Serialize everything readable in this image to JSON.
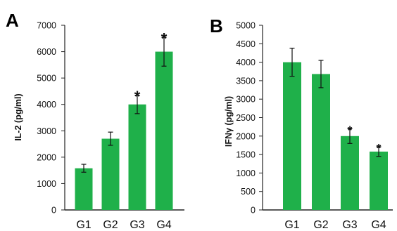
{
  "chart_data": [
    {
      "type": "bar",
      "panel": "A",
      "categories": [
        "G1",
        "G2",
        "G3",
        "G4"
      ],
      "values": [
        1580,
        2700,
        4000,
        6000
      ],
      "errors": [
        150,
        250,
        350,
        550
      ],
      "significant": [
        false,
        false,
        true,
        true
      ],
      "marker": "*",
      "ylabel": "IL-2 (pg/ml)",
      "ylim": [
        0,
        7000
      ],
      "yticks": [
        "0",
        "1000",
        "2000",
        "3000",
        "4000",
        "5000",
        "6000",
        "7000"
      ],
      "bar_color": "#1fb04a"
    },
    {
      "type": "bar",
      "panel": "B",
      "categories": [
        "G1",
        "G2",
        "G3",
        "G4"
      ],
      "values": [
        4000,
        3680,
        2000,
        1580
      ],
      "errors": [
        380,
        370,
        200,
        130
      ],
      "significant": [
        false,
        false,
        true,
        true
      ],
      "marker": "*",
      "ylabel": "IFNγ (pg/ml)",
      "ylim": [
        0,
        5000
      ],
      "yticks": [
        "0",
        "500",
        "1000",
        "1500",
        "2000",
        "2500",
        "3000",
        "3500",
        "4000",
        "4500",
        "5000"
      ],
      "bar_color": "#1fb04a"
    }
  ]
}
